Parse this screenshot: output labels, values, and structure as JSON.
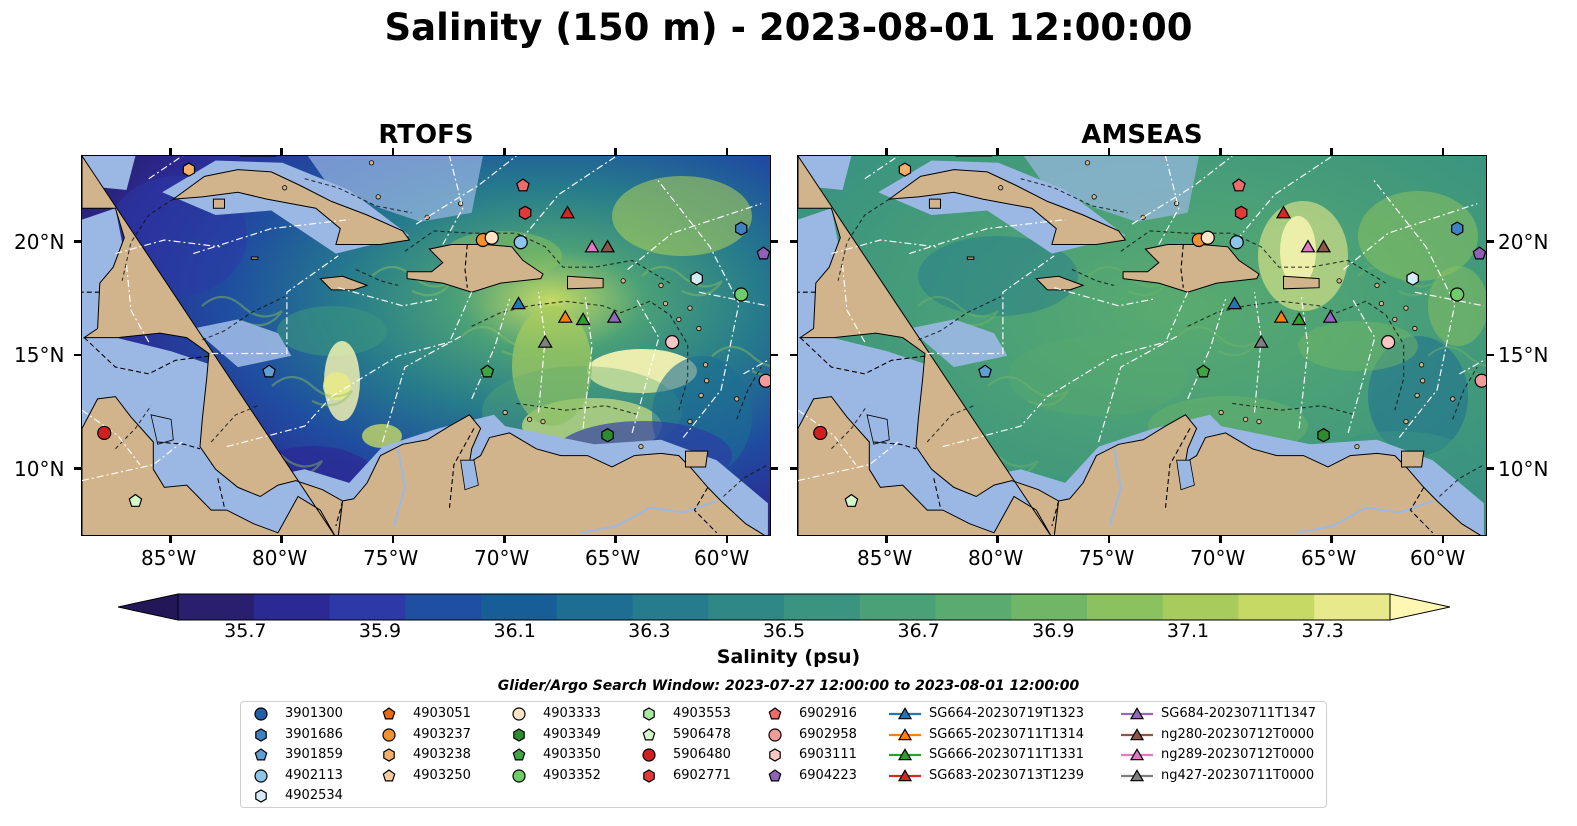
{
  "title": "Salinity (150 m) - 2023-08-01 12:00:00",
  "panels": [
    {
      "title": "RTOFS",
      "palette": "rtofs"
    },
    {
      "title": "AMSEAS",
      "palette": "amseas"
    }
  ],
  "lat_ticks": [
    "20°N",
    "15°N",
    "10°N"
  ],
  "lon_ticks": [
    "85°W",
    "80°W",
    "75°W",
    "70°W",
    "65°W",
    "60°W"
  ],
  "colorbar": {
    "label": "Salinity (psu)",
    "ticks": [
      "35.7",
      "35.9",
      "36.1",
      "36.3",
      "36.5",
      "36.7",
      "36.9",
      "37.1",
      "37.3"
    ],
    "min": 35.6,
    "max": 37.4,
    "colors": [
      "#2a1f6e",
      "#2b2a94",
      "#2c39a6",
      "#1f4fa0",
      "#185e96",
      "#1d6e92",
      "#267b8c",
      "#2f8886",
      "#3b947f",
      "#4aa077",
      "#5aab6f",
      "#70b666",
      "#8bc15e",
      "#a7cc5c",
      "#c6d965",
      "#e7e98a"
    ],
    "over_color": "#fdf7b3",
    "under_color": "#231758"
  },
  "legend": {
    "title": "Glider/Argo Search Window: 2023-07-27 12:00:00 to 2023-08-01 12:00:00",
    "columns": [
      [
        {
          "label": "3901300",
          "marker": "circle",
          "color": "#1f5fa8"
        },
        {
          "label": "3901686",
          "marker": "hexagon",
          "color": "#3f82c3"
        },
        {
          "label": "3901859",
          "marker": "pentagon",
          "color": "#5f9fd6"
        },
        {
          "label": "4902113",
          "marker": "circle",
          "color": "#8ec3ea"
        },
        {
          "label": "4902534",
          "marker": "hexagon",
          "color": "#d6ecfa"
        }
      ],
      [
        {
          "label": "4903051",
          "marker": "pentagon",
          "color": "#e86a0c"
        },
        {
          "label": "4903237",
          "marker": "circle",
          "color": "#f5902f"
        },
        {
          "label": "4903238",
          "marker": "hexagon",
          "color": "#f8ae6b"
        },
        {
          "label": "4903250",
          "marker": "pentagon",
          "color": "#fbcc9e"
        }
      ],
      [
        {
          "label": "4903333",
          "marker": "circle",
          "color": "#fde4c6"
        },
        {
          "label": "4903349",
          "marker": "hexagon",
          "color": "#2e8b2e"
        },
        {
          "label": "4903350",
          "marker": "pentagon",
          "color": "#3fa53f"
        },
        {
          "label": "4903352",
          "marker": "circle",
          "color": "#6fcc6a"
        }
      ],
      [
        {
          "label": "4903553",
          "marker": "hexagon",
          "color": "#a8e8a0"
        },
        {
          "label": "5906478",
          "marker": "pentagon",
          "color": "#d4f8cc"
        },
        {
          "label": "5906480",
          "marker": "circle",
          "color": "#cf2020"
        },
        {
          "label": "6902771",
          "marker": "hexagon",
          "color": "#e23a3a"
        }
      ],
      [
        {
          "label": "6902916",
          "marker": "pentagon",
          "color": "#ee6b6b"
        },
        {
          "label": "6902958",
          "marker": "circle",
          "color": "#f39a9a"
        },
        {
          "label": "6903111",
          "marker": "hexagon",
          "color": "#f9c6c6"
        },
        {
          "label": "6904223",
          "marker": "pentagon",
          "color": "#8f62b8"
        }
      ],
      [
        {
          "label": "SG664-20230719T1323",
          "marker": "triangle",
          "color": "#1f77b4"
        },
        {
          "label": "SG665-20230711T1314",
          "marker": "triangle",
          "color": "#ff7f0e"
        },
        {
          "label": "SG666-20230711T1331",
          "marker": "triangle",
          "color": "#2ca02c"
        },
        {
          "label": "SG683-20230713T1239",
          "marker": "triangle",
          "color": "#d62728"
        }
      ],
      [
        {
          "label": "SG684-20230711T1347",
          "marker": "triangle",
          "color": "#9467bd"
        },
        {
          "label": "ng280-20230712T0000",
          "marker": "triangle",
          "color": "#8c564b"
        },
        {
          "label": "ng289-20230712T0000",
          "marker": "triangle",
          "color": "#e377c2"
        },
        {
          "label": "ng427-20230711T0000",
          "marker": "triangle",
          "color": "#7f7f7f"
        }
      ]
    ]
  },
  "stations": [
    {
      "lon": -84.2,
      "lat": 23.2,
      "marker": "hexagon",
      "color": "#f8ae6b"
    },
    {
      "lon": -69.2,
      "lat": 22.5,
      "marker": "pentagon",
      "color": "#ee6b6b"
    },
    {
      "lon": -69.1,
      "lat": 21.3,
      "marker": "hexagon",
      "color": "#e23a3a"
    },
    {
      "lon": -67.2,
      "lat": 21.3,
      "marker": "triangle",
      "color": "#d62728"
    },
    {
      "lon": -59.4,
      "lat": 20.6,
      "marker": "hexagon",
      "color": "#3f82c3"
    },
    {
      "lon": -71.0,
      "lat": 20.1,
      "marker": "circle",
      "color": "#f5902f"
    },
    {
      "lon": -70.6,
      "lat": 20.2,
      "marker": "circle",
      "color": "#fde4c6"
    },
    {
      "lon": -69.3,
      "lat": 20.0,
      "marker": "circle",
      "color": "#8ec3ea"
    },
    {
      "lon": -66.1,
      "lat": 19.8,
      "marker": "triangle",
      "color": "#e377c2"
    },
    {
      "lon": -65.4,
      "lat": 19.8,
      "marker": "triangle",
      "color": "#8c564b"
    },
    {
      "lon": -58.4,
      "lat": 19.5,
      "marker": "pentagon",
      "color": "#8f62b8"
    },
    {
      "lon": -61.4,
      "lat": 18.4,
      "marker": "hexagon",
      "color": "#d6ecfa"
    },
    {
      "lon": -59.4,
      "lat": 17.7,
      "marker": "circle",
      "color": "#6fcc6a"
    },
    {
      "lon": -69.4,
      "lat": 17.3,
      "marker": "triangle",
      "color": "#1f77b4"
    },
    {
      "lon": -67.3,
      "lat": 16.7,
      "marker": "triangle",
      "color": "#ff7f0e"
    },
    {
      "lon": -66.5,
      "lat": 16.6,
      "marker": "triangle",
      "color": "#2ca02c"
    },
    {
      "lon": -65.1,
      "lat": 16.7,
      "marker": "triangle",
      "color": "#9467bd"
    },
    {
      "lon": -68.2,
      "lat": 15.6,
      "marker": "triangle",
      "color": "#7f7f7f"
    },
    {
      "lon": -62.5,
      "lat": 15.6,
      "marker": "circle",
      "color": "#f9c6c6"
    },
    {
      "lon": -80.6,
      "lat": 14.3,
      "marker": "pentagon",
      "color": "#5f9fd6"
    },
    {
      "lon": -70.8,
      "lat": 14.3,
      "marker": "pentagon",
      "color": "#3fa53f"
    },
    {
      "lon": -58.3,
      "lat": 13.9,
      "marker": "circle",
      "color": "#f39a9a"
    },
    {
      "lon": -88.0,
      "lat": 11.6,
      "marker": "circle",
      "color": "#cf2020"
    },
    {
      "lon": -65.4,
      "lat": 11.5,
      "marker": "hexagon",
      "color": "#2e8b2e"
    },
    {
      "lon": -86.6,
      "lat": 8.6,
      "marker": "pentagon",
      "color": "#d4f8cc"
    }
  ]
}
